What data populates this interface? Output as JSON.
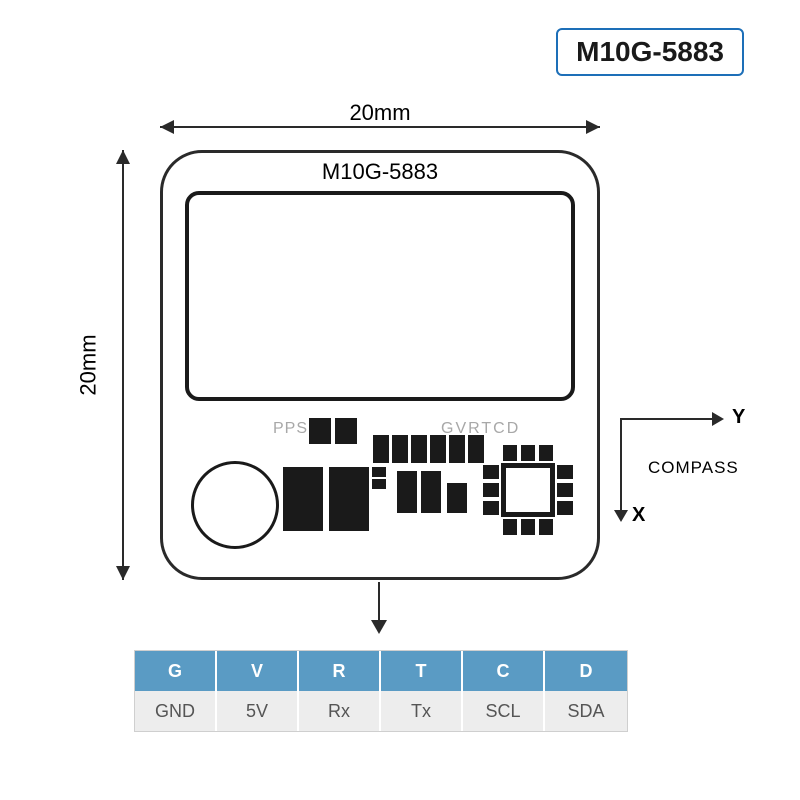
{
  "product_label": {
    "text": "M10G-5883",
    "border_color": "#1d6fb8",
    "text_color": "#1a1a1a"
  },
  "board": {
    "title": "M10G-5883",
    "width_label": "20mm",
    "height_label": "20mm",
    "pps_text": "PPS",
    "gvrtcd_text": "GVRTCD"
  },
  "compass": {
    "x_label": "X",
    "y_label": "Y",
    "caption": "COMPASS"
  },
  "pinout": {
    "header_bg": "#5a9bc4",
    "value_bg": "#ededed",
    "columns": [
      {
        "header": "G",
        "value": "GND"
      },
      {
        "header": "V",
        "value": "5V"
      },
      {
        "header": "R",
        "value": "Rx"
      },
      {
        "header": "T",
        "value": "Tx"
      },
      {
        "header": "C",
        "value": "SCL"
      },
      {
        "header": "D",
        "value": "SDA"
      }
    ]
  },
  "colors": {
    "line": "#2a2a2a",
    "part": "#1a1a1a",
    "background": "#ffffff",
    "faded_text": "#a8a8a8"
  }
}
